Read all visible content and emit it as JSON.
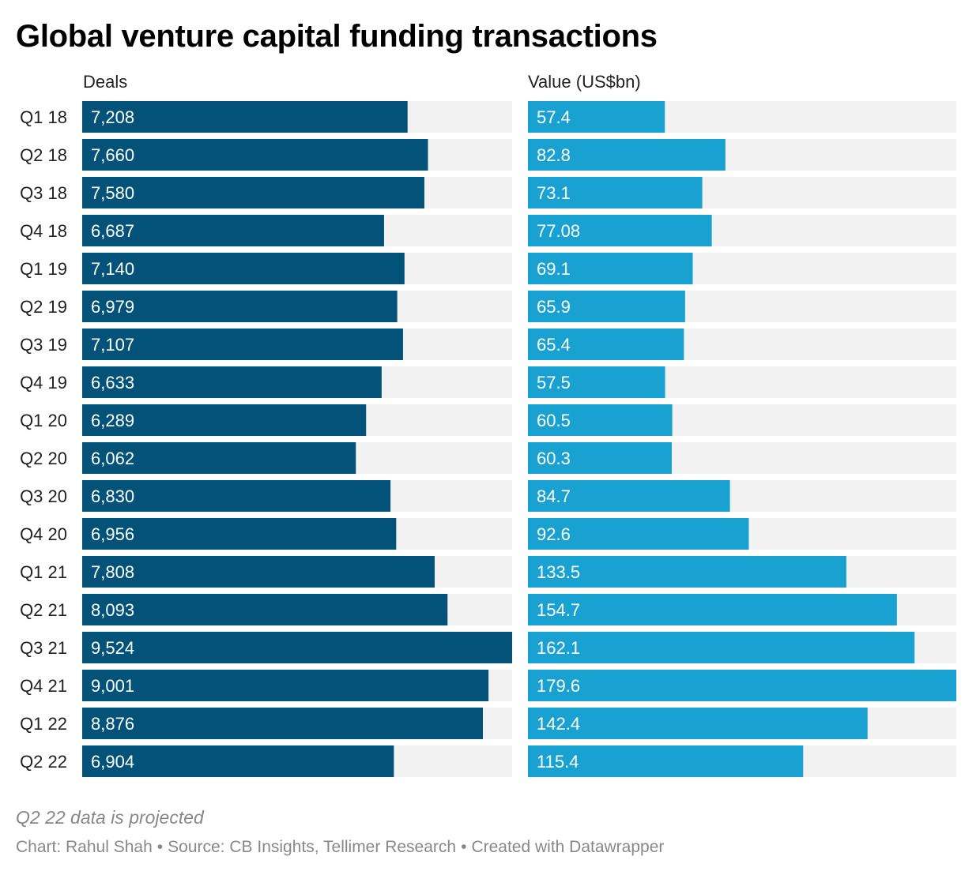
{
  "title": "Global venture capital funding transactions",
  "note": "Q2 22 data is projected",
  "footer": {
    "credit": "Chart: Rahul Shah",
    "source": "Source: CB Insights, Tellimer Research",
    "created": "Created with Datawrapper",
    "separator": "•"
  },
  "colors": {
    "deals_bar": "#03527a",
    "value_bar": "#19a2d1",
    "track": "#f2f2f2",
    "bar_label": "#ffffff"
  },
  "chart_data": {
    "type": "bar",
    "orientation": "horizontal",
    "categories": [
      "Q1 18",
      "Q2 18",
      "Q3 18",
      "Q4 18",
      "Q1 19",
      "Q2 19",
      "Q3 19",
      "Q4 19",
      "Q1 20",
      "Q2 20",
      "Q3 20",
      "Q4 20",
      "Q1 21",
      "Q2 21",
      "Q3 21",
      "Q4 21",
      "Q1 22",
      "Q2 22"
    ],
    "series": [
      {
        "name": "Deals",
        "values": [
          7208,
          7660,
          7580,
          6687,
          7140,
          6979,
          7107,
          6633,
          6289,
          6062,
          6830,
          6956,
          7808,
          8093,
          9524,
          9001,
          8876,
          6904
        ],
        "labels": [
          "7,208",
          "7,660",
          "7,580",
          "6,687",
          "7,140",
          "6,979",
          "7,107",
          "6,633",
          "6,289",
          "6,062",
          "6,830",
          "6,956",
          "7,808",
          "8,093",
          "9,524",
          "9,001",
          "8,876",
          "6,904"
        ],
        "max": 9524
      },
      {
        "name": "Value (US$bn)",
        "values": [
          57.4,
          82.8,
          73.1,
          77.08,
          69.1,
          65.9,
          65.4,
          57.5,
          60.5,
          60.3,
          84.7,
          92.6,
          133.5,
          154.7,
          162.1,
          179.6,
          142.4,
          115.4
        ],
        "labels": [
          "57.4",
          "82.8",
          "73.1",
          "77.08",
          "69.1",
          "65.9",
          "65.4",
          "57.5",
          "60.5",
          "60.3",
          "84.7",
          "92.6",
          "133.5",
          "154.7",
          "162.1",
          "179.6",
          "142.4",
          "115.4"
        ],
        "max": 179.6
      }
    ]
  }
}
